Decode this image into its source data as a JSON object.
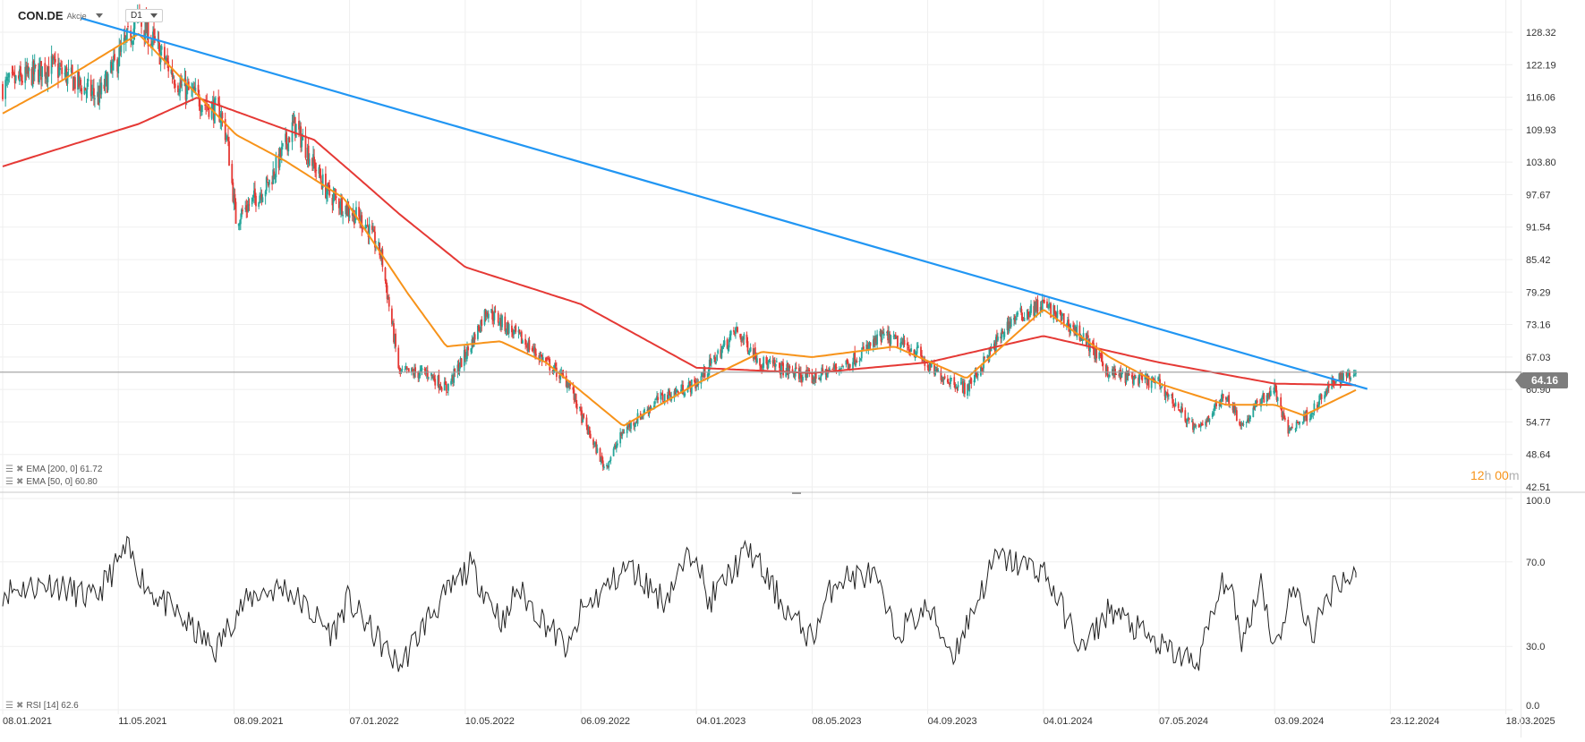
{
  "header": {
    "symbol": "CON.DE",
    "kind": "Akcje",
    "timeframe": "D1"
  },
  "indicators": {
    "ema200": "EMA [200, 0] 61.72",
    "ema50": "EMA [50, 0] 60.80",
    "rsi": "RSI [14] 62.6"
  },
  "timer": {
    "hours": "12",
    "h": "h",
    "minutes": "00",
    "m": "m"
  },
  "price_tag": "64.16",
  "colors": {
    "up": "#26a69a",
    "down": "#e53935",
    "ema200": "#e53935",
    "ema50": "#f7931a",
    "trend": "#2196f3",
    "rsi": "#222222",
    "price_line": "#9e9e9e"
  },
  "chart_data": [
    {
      "type": "candlestick",
      "title": "CON.DE",
      "x_ticks": [
        "08.01.2021",
        "11.05.2021",
        "08.09.2021",
        "07.01.2022",
        "10.05.2022",
        "06.09.2022",
        "04.01.2023",
        "08.05.2023",
        "04.09.2023",
        "04.01.2024",
        "07.05.2024",
        "03.09.2024",
        "23.12.2024",
        "18.03.2025"
      ],
      "y_ticks": [
        "128.32",
        "122.19",
        "116.06",
        "109.93",
        "103.80",
        "97.67",
        "91.54",
        "85.42",
        "79.29",
        "73.16",
        "67.03",
        "60.90",
        "54.77",
        "48.64",
        "42.51"
      ],
      "ylim": [
        42.51,
        128.32
      ],
      "last_price": 64.16,
      "close_path": [
        [
          "08.01.2021",
          118
        ],
        [
          "01.03.2021",
          122
        ],
        [
          "20.04.2021",
          116
        ],
        [
          "01.06.2021",
          131
        ],
        [
          "15.07.2021",
          118
        ],
        [
          "25.08.2021",
          113
        ],
        [
          "01.09.2021",
          108
        ],
        [
          "10.09.2021",
          93
        ],
        [
          "15.10.2021",
          100
        ],
        [
          "10.11.2021",
          111
        ],
        [
          "15.12.2021",
          98
        ],
        [
          "25.01.2022",
          92
        ],
        [
          "10.02.2022",
          86
        ],
        [
          "01.03.2022",
          64
        ],
        [
          "01.04.2022",
          64
        ],
        [
          "20.04.2022",
          61
        ],
        [
          "15.05.2022",
          69
        ],
        [
          "01.06.2022",
          76
        ],
        [
          "15.07.2022",
          69
        ],
        [
          "25.08.2022",
          62
        ],
        [
          "06.09.2022",
          56
        ],
        [
          "01.10.2022",
          46
        ],
        [
          "20.10.2022",
          53
        ],
        [
          "25.11.2022",
          59
        ],
        [
          "04.01.2023",
          62
        ],
        [
          "15.02.2023",
          72
        ],
        [
          "15.03.2023",
          66
        ],
        [
          "08.05.2023",
          63
        ],
        [
          "15.06.2023",
          66
        ],
        [
          "20.07.2023",
          71
        ],
        [
          "25.08.2023",
          68
        ],
        [
          "04.09.2023",
          65
        ],
        [
          "15.10.2023",
          61
        ],
        [
          "01.12.2023",
          74
        ],
        [
          "04.01.2024",
          77
        ],
        [
          "15.02.2024",
          71
        ],
        [
          "15.03.2024",
          64
        ],
        [
          "07.05.2024",
          62
        ],
        [
          "15.06.2024",
          53
        ],
        [
          "15.07.2024",
          60
        ],
        [
          "01.08.2024",
          54
        ],
        [
          "20.08.2024",
          59
        ],
        [
          "03.09.2024",
          61
        ],
        [
          "15.09.2024",
          53
        ],
        [
          "10.10.2024",
          57
        ],
        [
          "01.11.2024",
          63
        ],
        [
          "20.11.2024",
          64.16
        ]
      ],
      "series": [
        {
          "name": "EMA [200, 0]",
          "last": 61.72,
          "path": [
            [
              "08.01.2021",
              103
            ],
            [
              "01.06.2021",
              111
            ],
            [
              "01.08.2021",
              116
            ],
            [
              "01.10.2021",
              112
            ],
            [
              "01.12.2021",
              108
            ],
            [
              "01.03.2022",
              94
            ],
            [
              "10.05.2022",
              84
            ],
            [
              "06.09.2022",
              77
            ],
            [
              "04.01.2023",
              65
            ],
            [
              "08.05.2023",
              64
            ],
            [
              "04.09.2023",
              66
            ],
            [
              "04.01.2024",
              71
            ],
            [
              "07.05.2024",
              66
            ],
            [
              "03.09.2024",
              62
            ],
            [
              "20.11.2024",
              61.72
            ]
          ]
        },
        {
          "name": "EMA [50, 0]",
          "last": 60.8,
          "path": [
            [
              "08.01.2021",
              113
            ],
            [
              "01.03.2021",
              118
            ],
            [
              "01.06.2021",
              128
            ],
            [
              "10.09.2021",
              109
            ],
            [
              "01.11.2021",
              104
            ],
            [
              "01.01.2022",
              97
            ],
            [
              "10.03.2022",
              79
            ],
            [
              "20.04.2022",
              69
            ],
            [
              "15.06.2022",
              70
            ],
            [
              "01.08.2022",
              66
            ],
            [
              "20.10.2022",
              54
            ],
            [
              "04.01.2023",
              62
            ],
            [
              "15.03.2023",
              68
            ],
            [
              "08.05.2023",
              67
            ],
            [
              "01.08.2023",
              69
            ],
            [
              "15.10.2023",
              63
            ],
            [
              "04.01.2024",
              76
            ],
            [
              "15.03.2024",
              67
            ],
            [
              "07.05.2024",
              62
            ],
            [
              "15.07.2024",
              58
            ],
            [
              "03.09.2024",
              58
            ],
            [
              "01.10.2024",
              56
            ],
            [
              "20.11.2024",
              60.8
            ]
          ]
        }
      ],
      "trendline": [
        [
          "01.04.2021",
          131
        ],
        [
          "01.12.2024",
          61
        ]
      ]
    },
    {
      "type": "line",
      "title": "RSI [14]",
      "y_ticks": [
        "100.0",
        "70.0",
        "30.0",
        "0.0"
      ],
      "ylim": [
        0,
        100
      ],
      "series": [
        {
          "name": "RSI [14]",
          "last": 62.6,
          "path": [
            [
              "08.01.2021",
              56
            ],
            [
              "01.03.2021",
              60
            ],
            [
              "15.04.2021",
              52
            ],
            [
              "20.05.2021",
              76
            ],
            [
              "10.06.2021",
              58
            ],
            [
              "20.08.2021",
              28
            ],
            [
              "10.09.2021",
              46
            ],
            [
              "01.10.2021",
              55
            ],
            [
              "01.11.2021",
              58
            ],
            [
              "20.12.2021",
              36
            ],
            [
              "05.01.2022",
              52
            ],
            [
              "01.03.2022",
              20
            ],
            [
              "01.04.2022",
              44
            ],
            [
              "15.05.2022",
              68
            ],
            [
              "20.06.2022",
              40
            ],
            [
              "01.07.2022",
              58
            ],
            [
              "25.08.2022",
              28
            ],
            [
              "06.09.2022",
              46
            ],
            [
              "25.10.2022",
              68
            ],
            [
              "01.12.2022",
              52
            ],
            [
              "04.01.2023",
              78
            ],
            [
              "15.01.2023",
              50
            ],
            [
              "01.03.2023",
              76
            ],
            [
              "15.04.2023",
              44
            ],
            [
              "08.05.2023",
              34
            ],
            [
              "01.06.2023",
              62
            ],
            [
              "10.07.2023",
              64
            ],
            [
              "01.08.2023",
              36
            ],
            [
              "04.09.2023",
              48
            ],
            [
              "01.10.2023",
              26
            ],
            [
              "15.11.2023",
              72
            ],
            [
              "04.01.2024",
              66
            ],
            [
              "15.02.2024",
              28
            ],
            [
              "15.03.2024",
              48
            ],
            [
              "07.05.2024",
              30
            ],
            [
              "15.06.2024",
              22
            ],
            [
              "15.07.2024",
              64
            ],
            [
              "01.08.2024",
              32
            ],
            [
              "20.08.2024",
              62
            ],
            [
              "03.09.2024",
              28
            ],
            [
              "20.09.2024",
              58
            ],
            [
              "10.10.2024",
              36
            ],
            [
              "01.11.2024",
              62
            ],
            [
              "20.11.2024",
              62.6
            ]
          ]
        }
      ],
      "levels": [
        70,
        30
      ]
    }
  ]
}
